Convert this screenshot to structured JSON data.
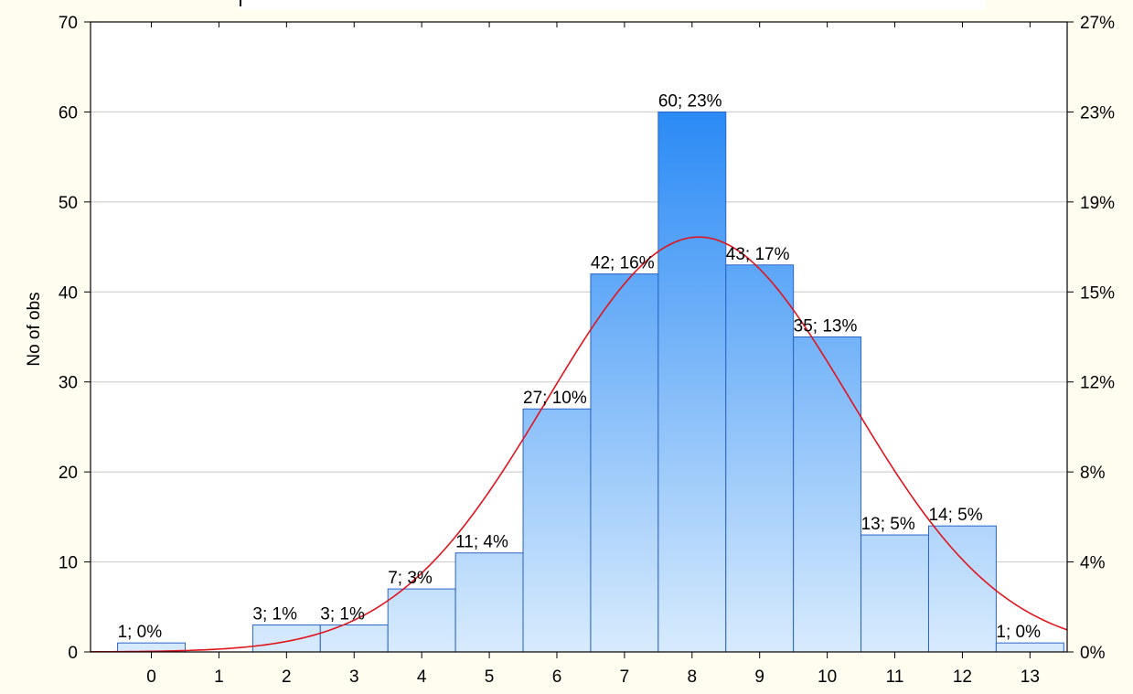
{
  "chart_data": {
    "type": "bar",
    "subtype": "histogram",
    "categories": [
      "0",
      "1",
      "2",
      "3",
      "4",
      "5",
      "6",
      "7",
      "8",
      "9",
      "10",
      "11",
      "12",
      "13"
    ],
    "values": [
      1,
      0,
      3,
      3,
      7,
      11,
      27,
      42,
      60,
      43,
      35,
      13,
      14,
      1
    ],
    "data_labels": [
      "1; 0%",
      "",
      "3; 1%",
      "3; 1%",
      "7; 3%",
      "11; 4%",
      "27; 10%",
      "42; 16%",
      "60; 23%",
      "43; 17%",
      "35; 13%",
      "13; 5%",
      "14; 5%",
      "1; 0%"
    ],
    "ylabel": "No of obs",
    "ylim": [
      0,
      70
    ],
    "yticks": [
      "0",
      "10",
      "20",
      "30",
      "40",
      "50",
      "60",
      "70"
    ],
    "y2ticks": [
      "0%",
      "4%",
      "8%",
      "12%",
      "15%",
      "19%",
      "23%",
      "27%"
    ],
    "grid": true,
    "fit_curve": {
      "type": "normal",
      "mean": 8.1,
      "sd": 2.25,
      "n": 260,
      "color": "#e0141e"
    },
    "colors": {
      "bar_top": "#2a8af5",
      "bar_bottom": "#d8ebfd",
      "bar_edge": "#2b64c8",
      "grid": "#c8c8c8",
      "background": "#fffcf0"
    }
  }
}
